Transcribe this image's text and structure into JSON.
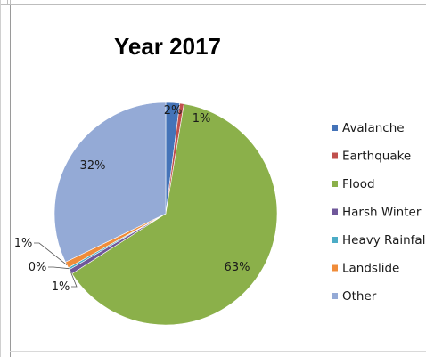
{
  "chart_data": {
    "type": "pie",
    "title": "Year 2017",
    "legend_position": "right",
    "slices": [
      {
        "name": "Avalanche",
        "value": 2,
        "label": "2%",
        "color": "#4473B8"
      },
      {
        "name": "Earthquake",
        "value": 0.6,
        "label": "1%",
        "color": "#C0504D"
      },
      {
        "name": "Flood",
        "value": 63,
        "label": "63%",
        "color": "#8BB04A"
      },
      {
        "name": "Harsh Winter",
        "value": 0.7,
        "label": "1%",
        "color": "#6F579A"
      },
      {
        "name": "Heavy Rainfall",
        "value": 0.3,
        "label": "0%",
        "color": "#4BACC6"
      },
      {
        "name": "Landslide",
        "value": 0.9,
        "label": "1%",
        "color": "#F08C3A"
      },
      {
        "name": "Other",
        "value": 32,
        "label": "32%",
        "color": "#94AAD6"
      }
    ]
  }
}
